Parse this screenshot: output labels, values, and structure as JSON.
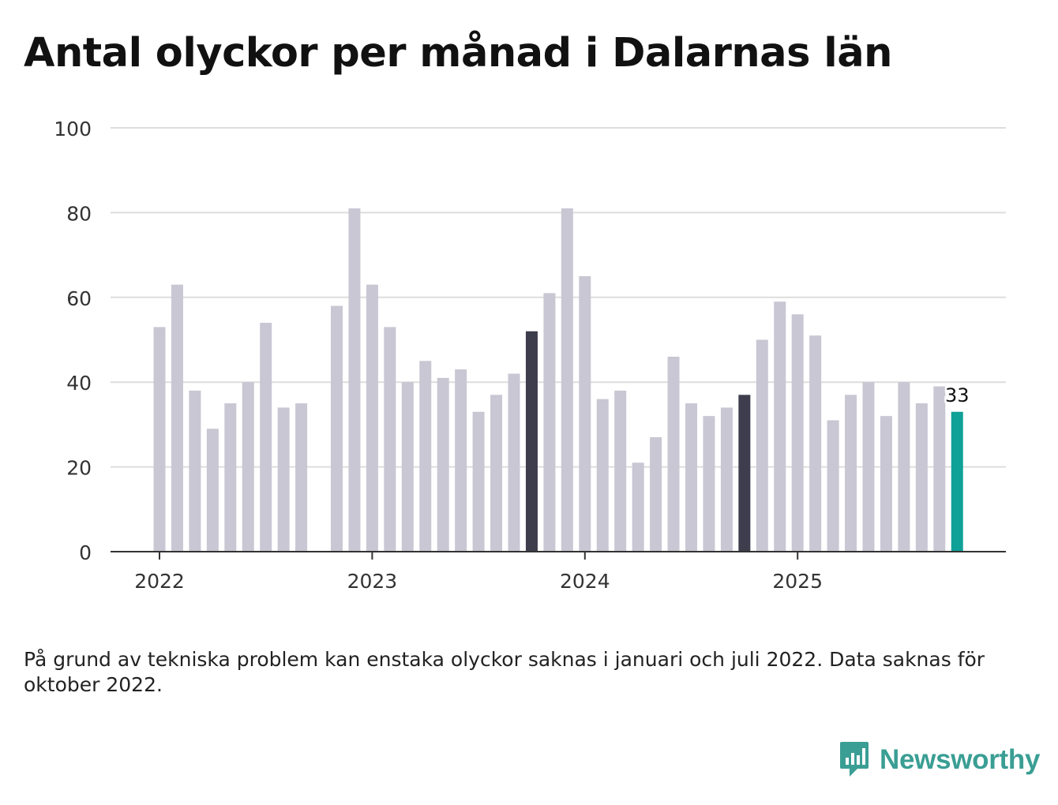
{
  "chart_data": {
    "type": "bar",
    "title": "Antal olyckor per månad i Dalarnas län",
    "xlabel": "",
    "ylabel": "",
    "ylim": [
      0,
      100
    ],
    "yticks": [
      "0",
      "20",
      "40",
      "60",
      "80",
      "100"
    ],
    "year_labels": [
      "2022",
      "2023",
      "2024",
      "2025"
    ],
    "series": [
      {
        "name": "Antal olyckor",
        "categories": [
          "2022-01",
          "2022-02",
          "2022-03",
          "2022-04",
          "2022-05",
          "2022-06",
          "2022-07",
          "2022-08",
          "2022-09",
          "2022-10",
          "2022-11",
          "2022-12",
          "2023-01",
          "2023-02",
          "2023-03",
          "2023-04",
          "2023-05",
          "2023-06",
          "2023-07",
          "2023-08",
          "2023-09",
          "2023-10",
          "2023-11",
          "2023-12",
          "2024-01",
          "2024-02",
          "2024-03",
          "2024-04",
          "2024-05",
          "2024-06",
          "2024-07",
          "2024-08",
          "2024-09",
          "2024-10",
          "2024-11",
          "2024-12",
          "2025-01",
          "2025-02",
          "2025-03",
          "2025-04",
          "2025-05",
          "2025-06",
          "2025-07",
          "2025-08",
          "2025-09",
          "2025-10"
        ],
        "values": [
          53,
          63,
          38,
          29,
          35,
          40,
          54,
          34,
          35,
          null,
          58,
          81,
          63,
          53,
          40,
          45,
          41,
          43,
          33,
          37,
          42,
          52,
          61,
          81,
          65,
          36,
          38,
          21,
          27,
          46,
          35,
          32,
          34,
          37,
          50,
          59,
          56,
          51,
          31,
          37,
          40,
          32,
          40,
          35,
          39,
          33
        ],
        "highlight_october": [
          21,
          33
        ],
        "latest_index": 45
      }
    ],
    "latest_label": "33",
    "colors": {
      "default_bar": "#c8c7d3",
      "october_bar": "#3d3d4e",
      "latest_bar": "#0fa098",
      "gridline": "#dddddd",
      "axis": "#333333"
    }
  },
  "footnote": "På grund av tekniska problem kan enstaka olyckor saknas i januari och juli 2022. Data saknas för oktober 2022.",
  "brand": {
    "name": "Newsworthy",
    "icon": "newsworthy-logo-icon",
    "color": "#3a9e94"
  }
}
